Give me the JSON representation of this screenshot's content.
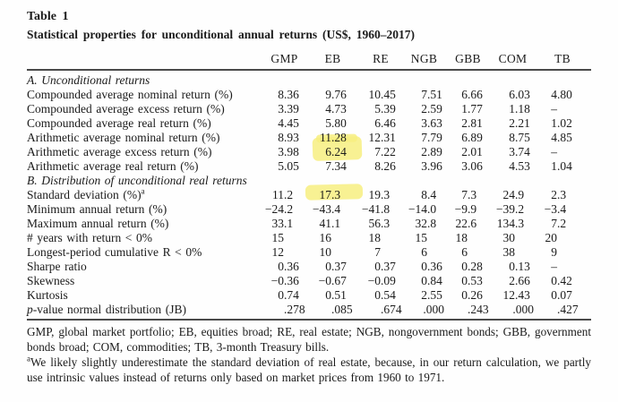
{
  "page": {
    "title": "Table 1",
    "subtitle": "Statistical properties for unconditional annual returns (US$, 1960–2017)"
  },
  "table": {
    "columns": [
      "GMP",
      "EB",
      "RE",
      "NGB",
      "GBB",
      "COM",
      "TB"
    ],
    "sections": [
      {
        "label": "A. Unconditional returns",
        "rows": [
          {
            "label": "Compounded average nominal return (%)",
            "values": [
              "8.36",
              "9.76",
              "10.45",
              "7.51",
              "6.66",
              "6.03",
              "4.80"
            ]
          },
          {
            "label": "Compounded average excess return (%)",
            "values": [
              "3.39",
              "4.73",
              "5.39",
              "2.59",
              "1.77",
              "1.18",
              "–"
            ]
          },
          {
            "label": "Compounded average real return (%)",
            "values": [
              "4.45",
              "5.80",
              "6.46",
              "3.63",
              "2.81",
              "2.21",
              "1.02"
            ]
          },
          {
            "label": "Arithmetic average nominal return (%)",
            "values": [
              "8.93",
              "11.28",
              "12.31",
              "7.79",
              "6.89",
              "8.75",
              "4.85"
            ]
          },
          {
            "label": "Arithmetic average excess return (%)",
            "values": [
              "3.98",
              "6.24",
              "7.22",
              "2.89",
              "2.01",
              "3.74",
              "–"
            ]
          },
          {
            "label": "Arithmetic average real return (%)",
            "values": [
              "5.05",
              "7.34",
              "8.26",
              "3.96",
              "3.06",
              "4.53",
              "1.04"
            ]
          }
        ]
      },
      {
        "label": "B. Distribution of unconditional real returns",
        "rows": [
          {
            "label": "Standard deviation (%)",
            "sup": "a",
            "values": [
              "11.2",
              "17.3",
              "19.3",
              "8.4",
              "7.3",
              "24.9",
              "2.3"
            ]
          },
          {
            "label": "Minimum annual return (%)",
            "values": [
              "−24.2",
              "−43.4",
              "−41.8",
              "−14.0",
              "−9.9",
              "−39.2",
              "−3.4"
            ]
          },
          {
            "label": "Maximum annual return (%)",
            "values": [
              "33.1",
              "41.1",
              "56.3",
              "32.8",
              "22.6",
              "134.3",
              "7.2"
            ]
          },
          {
            "label": "# years with return < 0%",
            "values": [
              "15",
              "16",
              "18",
              "15",
              "18",
              "30",
              "20"
            ]
          },
          {
            "label": "Longest-period cumulative R < 0%",
            "values": [
              "12",
              "10",
              "7",
              "6",
              "6",
              "38",
              "9"
            ]
          },
          {
            "label": "Sharpe ratio",
            "values": [
              "0.36",
              "0.37",
              "0.37",
              "0.36",
              "0.28",
              "0.13",
              "–"
            ]
          },
          {
            "label": "Skewness",
            "values": [
              "−0.36",
              "−0.67",
              "−0.09",
              "0.84",
              "0.53",
              "2.66",
              "0.42"
            ]
          },
          {
            "label": "Kurtosis",
            "values": [
              "0.74",
              "0.51",
              "0.54",
              "2.55",
              "0.26",
              "12.43",
              "0.07"
            ]
          },
          {
            "label": "p-value normal distribution (JB)",
            "italic_prefix": 1,
            "values": [
              ".278",
              ".085",
              ".674",
              ".000",
              ".243",
              ".000",
              ".427"
            ]
          }
        ]
      }
    ]
  },
  "footnotes": [
    {
      "sup": "",
      "text": "GMP, global market portfolio; EB, equities broad; RE, real estate; NGB, nongovernment bonds; GBB, government bonds broad; COM, commodities; TB, 3-month Treasury bills."
    },
    {
      "sup": "a",
      "text": "We likely slightly underestimate the standard deviation of real estate, because, in our return calculation, we partly use intrinsic values instead of returns only based on market prices from 1960 to 1971."
    }
  ],
  "highlights": {
    "color": "#f7ee80",
    "marker_cells": [
      {
        "row_label": "Arithmetic average nominal return (%)",
        "column": "EB",
        "value": "11.28"
      },
      {
        "row_label": "Arithmetic average excess return (%)",
        "column": "EB",
        "value": "6.24"
      },
      {
        "row_label": "Standard deviation (%)",
        "column": "EB",
        "value": "17.3"
      }
    ]
  }
}
